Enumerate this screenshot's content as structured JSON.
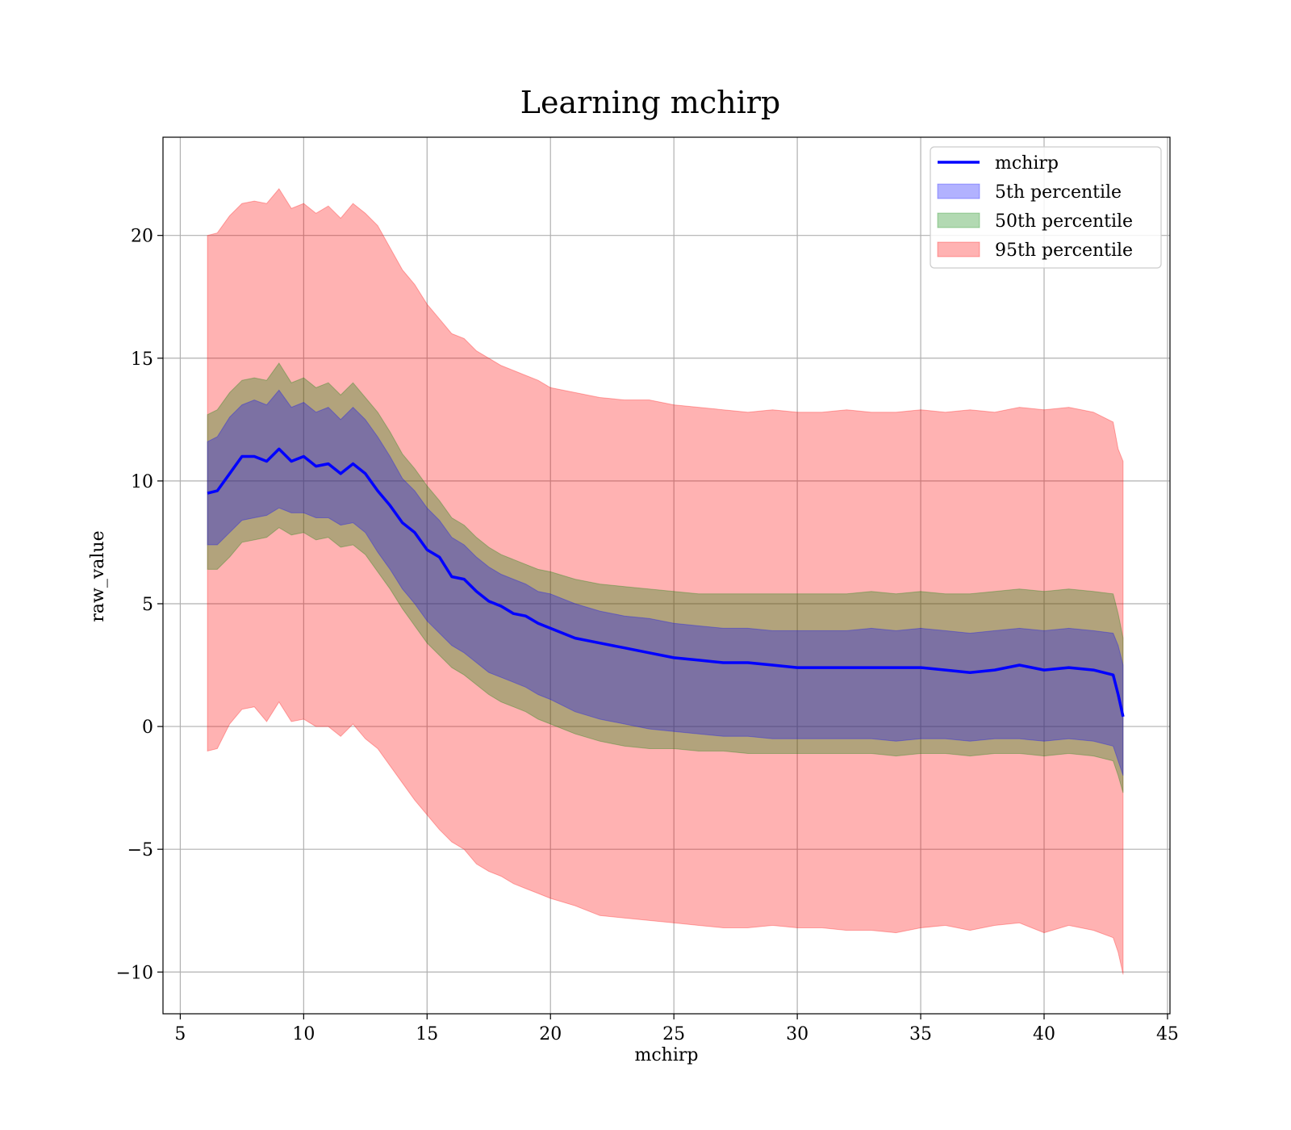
{
  "chart_data": {
    "type": "area",
    "title": "Learning mchirp",
    "xlabel": "mchirp",
    "ylabel": "raw_value",
    "xlim": [
      4.3,
      45.1
    ],
    "ylim": [
      -11.7,
      24
    ],
    "xticks": [
      5,
      10,
      15,
      20,
      25,
      30,
      35,
      40,
      45
    ],
    "yticks": [
      -10,
      -5,
      0,
      5,
      10,
      15,
      20
    ],
    "xtick_labels": [
      "5",
      "10",
      "15",
      "20",
      "25",
      "30",
      "35",
      "40",
      "45"
    ],
    "ytick_labels": [
      "−10",
      "−5",
      "0",
      "5",
      "10",
      "15",
      "20"
    ],
    "grid": true,
    "legend_position": "upper right",
    "x": [
      6.1,
      6.5,
      7,
      7.5,
      8,
      8.5,
      9,
      9.5,
      10,
      10.5,
      11,
      11.5,
      12,
      12.5,
      13,
      13.5,
      14,
      14.5,
      15,
      15.5,
      16,
      16.5,
      17,
      17.5,
      18,
      18.5,
      19,
      19.5,
      20,
      21,
      22,
      23,
      24,
      25,
      26,
      27,
      28,
      29,
      30,
      31,
      32,
      33,
      34,
      35,
      36,
      37,
      38,
      39,
      40,
      41,
      42,
      42.8,
      43,
      43.2
    ],
    "series": [
      {
        "name": "mchirp",
        "kind": "line",
        "color": "#0000ff",
        "values": [
          9.5,
          9.6,
          10.3,
          11.0,
          11.0,
          10.8,
          11.3,
          10.8,
          11.0,
          10.6,
          10.7,
          10.3,
          10.7,
          10.3,
          9.6,
          9.0,
          8.3,
          7.9,
          7.2,
          6.9,
          6.1,
          6.0,
          5.5,
          5.1,
          4.9,
          4.6,
          4.5,
          4.2,
          4.0,
          3.6,
          3.4,
          3.2,
          3.0,
          2.8,
          2.7,
          2.6,
          2.6,
          2.5,
          2.4,
          2.4,
          2.4,
          2.4,
          2.4,
          2.4,
          2.3,
          2.2,
          2.3,
          2.5,
          2.3,
          2.4,
          2.3,
          2.1,
          1.3,
          0.4
        ]
      },
      {
        "name": "5th percentile",
        "kind": "band",
        "color": "#0000ff",
        "alpha": 0.3,
        "lower": [
          7.4,
          7.4,
          7.9,
          8.4,
          8.5,
          8.6,
          8.9,
          8.7,
          8.7,
          8.5,
          8.5,
          8.2,
          8.3,
          7.9,
          7.1,
          6.4,
          5.6,
          5.0,
          4.3,
          3.8,
          3.3,
          3.0,
          2.6,
          2.2,
          2.0,
          1.8,
          1.6,
          1.3,
          1.1,
          0.6,
          0.3,
          0.1,
          -0.1,
          -0.2,
          -0.3,
          -0.4,
          -0.4,
          -0.5,
          -0.5,
          -0.5,
          -0.5,
          -0.5,
          -0.6,
          -0.5,
          -0.5,
          -0.6,
          -0.5,
          -0.5,
          -0.6,
          -0.5,
          -0.6,
          -0.8,
          -1.4,
          -2.0
        ],
        "upper": [
          11.6,
          11.8,
          12.6,
          13.1,
          13.3,
          13.1,
          13.7,
          13.0,
          13.2,
          12.8,
          13.0,
          12.5,
          13.0,
          12.5,
          11.8,
          11.0,
          10.1,
          9.6,
          8.9,
          8.4,
          7.7,
          7.4,
          6.9,
          6.5,
          6.2,
          6.0,
          5.8,
          5.5,
          5.4,
          5.0,
          4.7,
          4.5,
          4.4,
          4.2,
          4.1,
          4.0,
          4.0,
          3.9,
          3.9,
          3.9,
          3.9,
          4.0,
          3.9,
          4.0,
          3.9,
          3.8,
          3.9,
          4.0,
          3.9,
          4.0,
          3.9,
          3.8,
          3.3,
          2.5
        ]
      },
      {
        "name": "50th percentile",
        "kind": "band",
        "color": "#008000",
        "alpha": 0.3,
        "lower": [
          6.4,
          6.4,
          6.9,
          7.5,
          7.6,
          7.7,
          8.1,
          7.8,
          7.9,
          7.6,
          7.7,
          7.3,
          7.4,
          7.0,
          6.3,
          5.6,
          4.8,
          4.1,
          3.4,
          2.9,
          2.4,
          2.1,
          1.7,
          1.3,
          1.0,
          0.8,
          0.6,
          0.3,
          0.1,
          -0.3,
          -0.6,
          -0.8,
          -0.9,
          -0.9,
          -1.0,
          -1.0,
          -1.1,
          -1.1,
          -1.1,
          -1.1,
          -1.1,
          -1.1,
          -1.2,
          -1.1,
          -1.1,
          -1.2,
          -1.1,
          -1.1,
          -1.2,
          -1.1,
          -1.2,
          -1.4,
          -2.0,
          -2.7
        ],
        "upper": [
          12.7,
          12.9,
          13.6,
          14.1,
          14.2,
          14.1,
          14.8,
          14.0,
          14.2,
          13.8,
          14.0,
          13.5,
          14.0,
          13.4,
          12.8,
          12.0,
          11.1,
          10.5,
          9.8,
          9.2,
          8.5,
          8.2,
          7.7,
          7.3,
          7.0,
          6.8,
          6.6,
          6.4,
          6.3,
          6.0,
          5.8,
          5.7,
          5.6,
          5.5,
          5.4,
          5.4,
          5.4,
          5.4,
          5.4,
          5.4,
          5.4,
          5.5,
          5.4,
          5.5,
          5.4,
          5.4,
          5.5,
          5.6,
          5.5,
          5.6,
          5.5,
          5.4,
          4.6,
          3.6
        ]
      },
      {
        "name": "95th percentile",
        "kind": "band",
        "color": "#ff0000",
        "alpha": 0.3,
        "lower": [
          -1.0,
          -0.9,
          0.1,
          0.7,
          0.8,
          0.2,
          1.0,
          0.2,
          0.3,
          0.0,
          0.0,
          -0.4,
          0.1,
          -0.5,
          -0.9,
          -1.6,
          -2.3,
          -3.0,
          -3.6,
          -4.2,
          -4.7,
          -5.0,
          -5.6,
          -5.9,
          -6.1,
          -6.4,
          -6.6,
          -6.8,
          -7.0,
          -7.3,
          -7.7,
          -7.8,
          -7.9,
          -8.0,
          -8.1,
          -8.2,
          -8.2,
          -8.1,
          -8.2,
          -8.2,
          -8.3,
          -8.3,
          -8.4,
          -8.2,
          -8.1,
          -8.3,
          -8.1,
          -8.0,
          -8.4,
          -8.1,
          -8.3,
          -8.6,
          -9.2,
          -10.1
        ],
        "upper": [
          20.0,
          20.1,
          20.8,
          21.3,
          21.4,
          21.3,
          21.9,
          21.1,
          21.3,
          20.9,
          21.2,
          20.7,
          21.3,
          20.9,
          20.4,
          19.5,
          18.6,
          18.0,
          17.2,
          16.6,
          16.0,
          15.8,
          15.3,
          15.0,
          14.7,
          14.5,
          14.3,
          14.1,
          13.8,
          13.6,
          13.4,
          13.3,
          13.3,
          13.1,
          13.0,
          12.9,
          12.8,
          12.9,
          12.8,
          12.8,
          12.9,
          12.8,
          12.8,
          12.9,
          12.8,
          12.9,
          12.8,
          13.0,
          12.9,
          13.0,
          12.8,
          12.4,
          11.3,
          10.8
        ]
      }
    ]
  }
}
